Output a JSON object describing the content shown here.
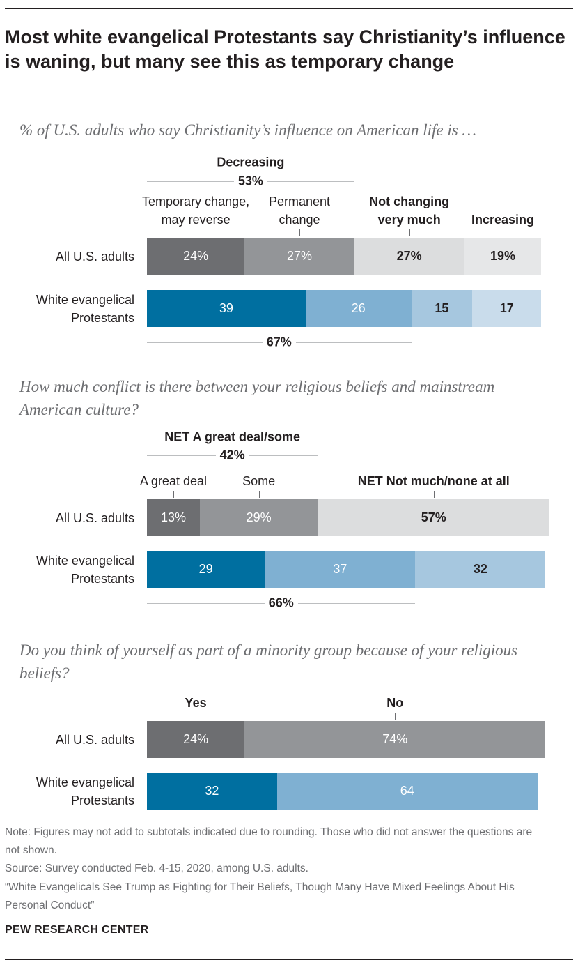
{
  "title": "Most white evangelical Protestants say Christianity’s influence is waning, but many see this as temporary change",
  "colors": {
    "gray_dark": "#6d6e71",
    "gray_mid": "#939598",
    "gray_light": "#dcddde",
    "gray_lighter": "#e6e7e8",
    "blue_dark": "#006fa0",
    "blue_mid": "#7fb0d2",
    "blue_light": "#a6c7df",
    "blue_lighter": "#c9dceb"
  },
  "chart_data": [
    {
      "type": "bar",
      "orientation": "horizontal-stacked",
      "title": "% of U.S. adults who say Christianity’s influence on American life is …",
      "categories": [
        "All U.S. adults",
        "White evangelical Protestants"
      ],
      "series": [
        {
          "name": "Temporary change, may reverse",
          "values": [
            24,
            39
          ],
          "labels": [
            "24%",
            "39"
          ],
          "colors": [
            "#6d6e71",
            "#006fa0"
          ],
          "text": [
            "#ffffff",
            "#ffffff"
          ],
          "bold_header": false
        },
        {
          "name": "Permanent change",
          "values": [
            27,
            26
          ],
          "labels": [
            "27%",
            "26"
          ],
          "colors": [
            "#939598",
            "#7fb0d2"
          ],
          "text": [
            "#ffffff",
            "#ffffff"
          ],
          "bold_header": false
        },
        {
          "name": "Not changing very much",
          "values": [
            27,
            15
          ],
          "labels": [
            "27%",
            "15"
          ],
          "colors": [
            "#dcddde",
            "#a6c7df"
          ],
          "text": [
            "#231f20",
            "#231f20"
          ],
          "bold_header": true
        },
        {
          "name": "Increasing",
          "values": [
            19,
            17
          ],
          "labels": [
            "19%",
            "17"
          ],
          "colors": [
            "#e6e7e8",
            "#c9dceb"
          ],
          "text": [
            "#231f20",
            "#231f20"
          ],
          "bold_header": true
        }
      ],
      "nets": [
        {
          "name": "Decreasing",
          "value_label": "53%",
          "row": 0,
          "segments": [
            0,
            1
          ],
          "position": "above"
        },
        {
          "name": "",
          "value_label": "67%",
          "row": 1,
          "segments": [
            0,
            1
          ],
          "position": "below"
        }
      ]
    },
    {
      "type": "bar",
      "orientation": "horizontal-stacked",
      "title": "How much conflict is there between your religious beliefs and mainstream American culture?",
      "categories": [
        "All U.S. adults",
        "White evangelical Protestants"
      ],
      "series": [
        {
          "name": "A great deal",
          "values": [
            13,
            29
          ],
          "labels": [
            "13%",
            "29"
          ],
          "colors": [
            "#6d6e71",
            "#006fa0"
          ],
          "text": [
            "#ffffff",
            "#ffffff"
          ],
          "bold_header": false
        },
        {
          "name": "Some",
          "values": [
            29,
            37
          ],
          "labels": [
            "29%",
            "37"
          ],
          "colors": [
            "#939598",
            "#7fb0d2"
          ],
          "text": [
            "#ffffff",
            "#ffffff"
          ],
          "bold_header": false
        },
        {
          "name": "NET Not much/none at all",
          "values": [
            57,
            32
          ],
          "labels": [
            "57%",
            "32"
          ],
          "colors": [
            "#dcddde",
            "#a6c7df"
          ],
          "text": [
            "#231f20",
            "#231f20"
          ],
          "bold_header": true
        }
      ],
      "nets": [
        {
          "name": "NET A great deal/some",
          "value_label": "42%",
          "row": 0,
          "segments": [
            0,
            1
          ],
          "position": "above"
        },
        {
          "name": "",
          "value_label": "66%",
          "row": 1,
          "segments": [
            0,
            1
          ],
          "position": "below"
        }
      ]
    },
    {
      "type": "bar",
      "orientation": "horizontal-stacked",
      "title": "Do you think of yourself as part of a minority group because of your religious beliefs?",
      "categories": [
        "All U.S. adults",
        "White evangelical Protestants"
      ],
      "series": [
        {
          "name": "Yes",
          "values": [
            24,
            32
          ],
          "labels": [
            "24%",
            "32"
          ],
          "colors": [
            "#6d6e71",
            "#006fa0"
          ],
          "text": [
            "#ffffff",
            "#ffffff"
          ],
          "bold_header": true
        },
        {
          "name": "No",
          "values": [
            74,
            64
          ],
          "labels": [
            "74%",
            "64"
          ],
          "colors": [
            "#939598",
            "#7fb0d2"
          ],
          "text": [
            "#ffffff",
            "#ffffff"
          ],
          "bold_header": true
        }
      ],
      "nets": []
    }
  ],
  "footer": {
    "note": "Note: Figures may not add to subtotals indicated due to rounding. Those who did not answer the questions are not shown.",
    "source": "Source: Survey conducted Feb. 4-15, 2020, among U.S. adults.",
    "report": "“White Evangelicals See Trump as Fighting for Their Beliefs, Though Many Have Mixed Feelings About His Personal Conduct”",
    "brand": "PEW RESEARCH CENTER"
  }
}
